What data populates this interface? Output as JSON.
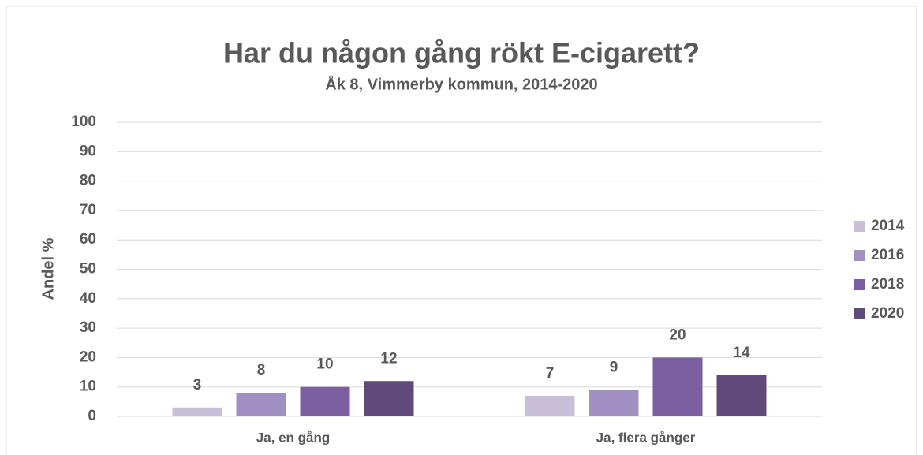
{
  "chart_data": {
    "type": "bar",
    "title": "Har du någon gång rökt E-cigarett?",
    "subtitle": "Åk 8, Vimmerby kommun, 2014-2020",
    "y_label": "Andel %",
    "categories": [
      "Ja, en gång",
      "Ja, flera gånger"
    ],
    "series": [
      {
        "name": "2014",
        "color": "#c9bfd9",
        "values": [
          3,
          7
        ]
      },
      {
        "name": "2016",
        "color": "#a091c2",
        "values": [
          8,
          9
        ]
      },
      {
        "name": "2018",
        "color": "#7b5fa0",
        "values": [
          10,
          20
        ]
      },
      {
        "name": "2020",
        "color": "#604a7b",
        "values": [
          12,
          14
        ]
      }
    ],
    "ylim": [
      0,
      100
    ],
    "yticks": [
      0,
      10,
      20,
      30,
      40,
      50,
      60,
      70,
      80,
      90,
      100
    ],
    "grid": true,
    "legend": "right"
  }
}
